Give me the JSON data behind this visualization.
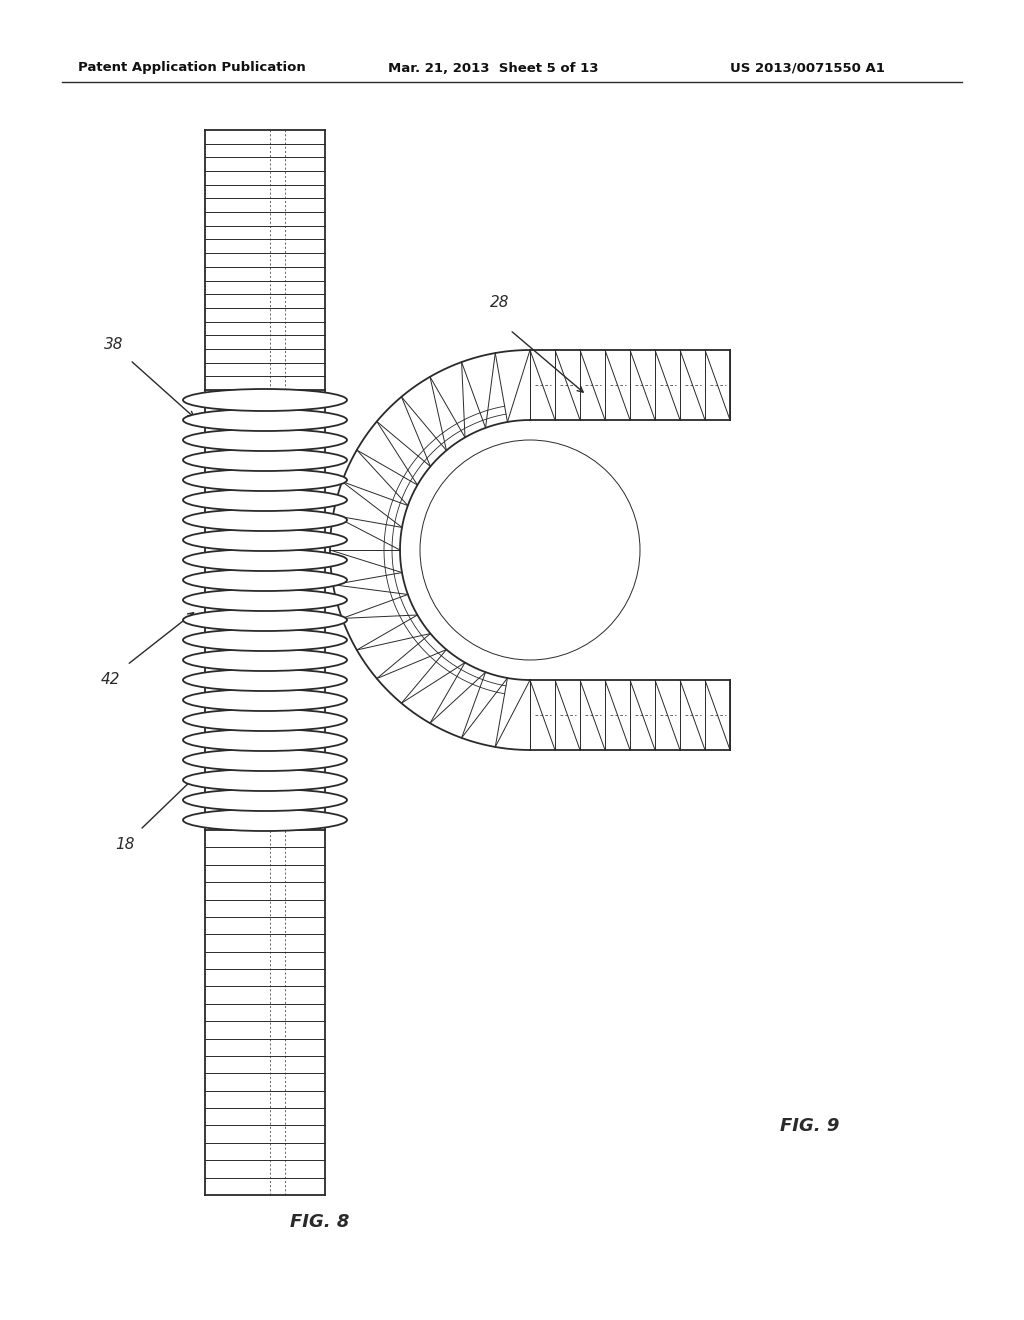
{
  "header_left": "Patent Application Publication",
  "header_mid": "Mar. 21, 2013  Sheet 5 of 13",
  "header_right": "US 2013/0071550 A1",
  "fig8_label": "FIG. 8",
  "fig9_label": "FIG. 9",
  "label_38": "38",
  "label_42": "42",
  "label_18": "18",
  "label_28": "28",
  "bg_color": "#ffffff",
  "line_color": "#2a2a2a",
  "header_color": "#111111"
}
